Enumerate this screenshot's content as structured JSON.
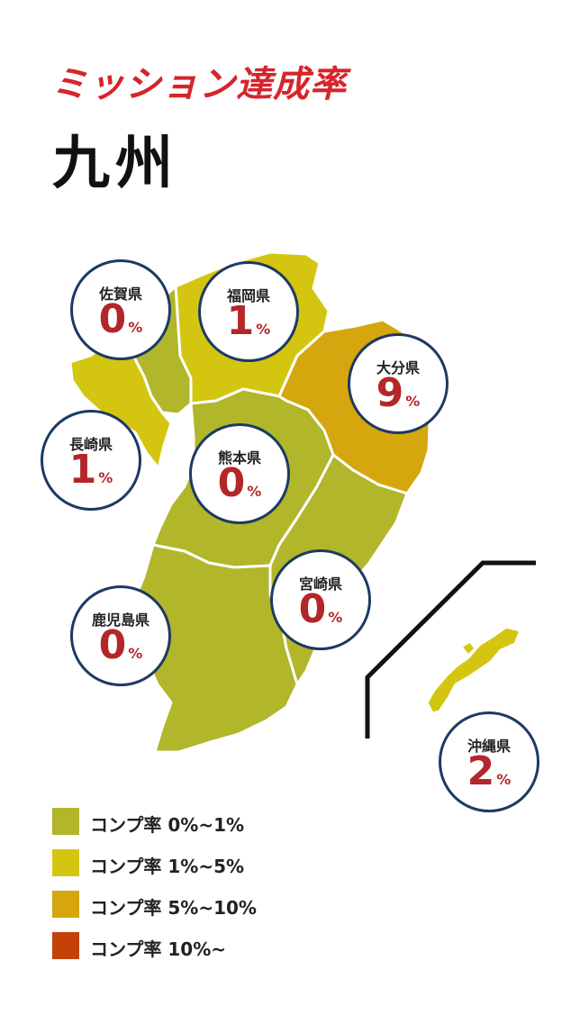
{
  "header": {
    "subtitle": "ミッション達成率",
    "title": "九州"
  },
  "colors": {
    "level1": "#b1b62b",
    "level2": "#d4c511",
    "level3": "#d5a60e",
    "level4": "#c4420a",
    "bubble_border": "#1d3a62",
    "value_text": "#b3262a"
  },
  "prefectures": [
    {
      "id": "saga",
      "name": "佐賀県",
      "value": "0",
      "unit": "%",
      "level": "level1"
    },
    {
      "id": "fukuoka",
      "name": "福岡県",
      "value": "1",
      "unit": "%",
      "level": "level2"
    },
    {
      "id": "oita",
      "name": "大分県",
      "value": "9",
      "unit": "%",
      "level": "level3"
    },
    {
      "id": "nagasaki",
      "name": "長崎県",
      "value": "1",
      "unit": "%",
      "level": "level2"
    },
    {
      "id": "kumamoto",
      "name": "熊本県",
      "value": "0",
      "unit": "%",
      "level": "level1"
    },
    {
      "id": "miyazaki",
      "name": "宮崎県",
      "value": "0",
      "unit": "%",
      "level": "level1"
    },
    {
      "id": "kagoshima",
      "name": "鹿児島県",
      "value": "0",
      "unit": "%",
      "level": "level1"
    },
    {
      "id": "okinawa",
      "name": "沖縄県",
      "value": "2",
      "unit": "%",
      "level": "level2"
    }
  ],
  "legend": [
    {
      "label": "コンプ率 0%~1%",
      "color": "#b1b62b"
    },
    {
      "label": "コンプ率 1%~5%",
      "color": "#d4c511"
    },
    {
      "label": "コンプ率 5%~10%",
      "color": "#d5a60e"
    },
    {
      "label": "コンプ率 10%~",
      "color": "#c4420a"
    }
  ]
}
